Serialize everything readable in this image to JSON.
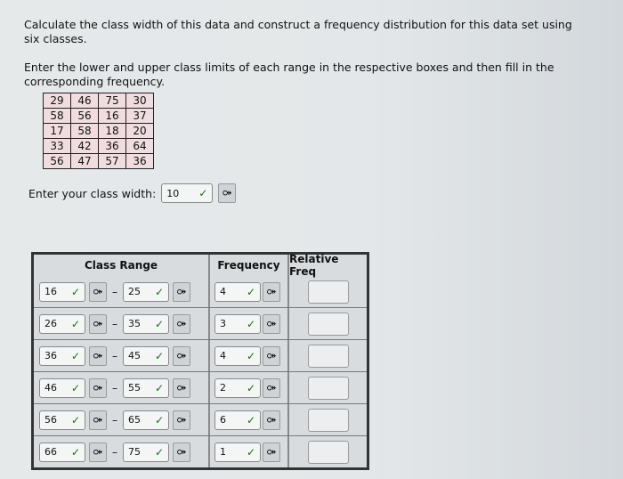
{
  "question": {
    "line1": "Calculate the class width of this data and construct a frequency distribution for this data set using six classes.",
    "line2": "Enter the lower and upper class limits of each range in the respective boxes and then fill in the corresponding frequency."
  },
  "data_set": [
    [
      29,
      46,
      75,
      30
    ],
    [
      58,
      56,
      16,
      37
    ],
    [
      17,
      58,
      18,
      20
    ],
    [
      33,
      42,
      36,
      64
    ],
    [
      56,
      47,
      57,
      36
    ]
  ],
  "class_width": {
    "label": "Enter your class width:",
    "value": "10"
  },
  "table": {
    "headers": [
      "Class Range",
      "Frequency",
      "Relative Freq"
    ],
    "rows": [
      {
        "lower": "16",
        "upper": "25",
        "frequency": "4",
        "relative": ""
      },
      {
        "lower": "26",
        "upper": "35",
        "frequency": "3",
        "relative": ""
      },
      {
        "lower": "36",
        "upper": "45",
        "frequency": "4",
        "relative": ""
      },
      {
        "lower": "46",
        "upper": "55",
        "frequency": "2",
        "relative": ""
      },
      {
        "lower": "56",
        "upper": "65",
        "frequency": "6",
        "relative": ""
      },
      {
        "lower": "66",
        "upper": "75",
        "frequency": "1",
        "relative": ""
      }
    ]
  },
  "icons": {
    "check": "✓",
    "key": "⚩",
    "dash": "–"
  }
}
